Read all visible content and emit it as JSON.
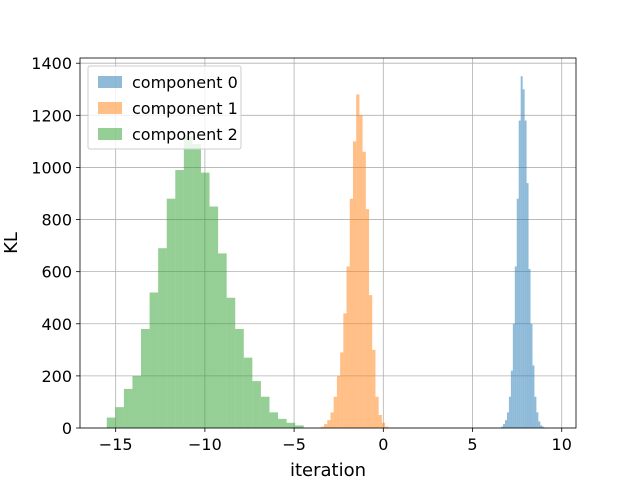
{
  "chart_data": {
    "type": "bar",
    "title": "",
    "xlabel": "iteration",
    "ylabel": "KL",
    "xlim": [
      -17,
      10.8
    ],
    "ylim": [
      0,
      1420
    ],
    "xticks": [
      -15,
      -10,
      -5,
      0,
      5,
      10
    ],
    "xtick_labels": [
      "−15",
      "−10",
      "−5",
      "0",
      "5",
      "10"
    ],
    "yticks": [
      0,
      200,
      400,
      600,
      800,
      1000,
      1200,
      1400
    ],
    "ytick_labels": [
      "0",
      "200",
      "400",
      "600",
      "800",
      "1000",
      "1200",
      "1400"
    ],
    "grid": true,
    "legend_position": "top-left",
    "series": [
      {
        "name": "component 0",
        "color": "#1f77b4",
        "opacity": 0.5,
        "bin_start": 6.6,
        "bin_width": 0.11,
        "counts": [
          5,
          15,
          30,
          60,
          120,
          220,
          400,
          620,
          880,
          1180,
          1350,
          1300,
          1180,
          940,
          610,
          400,
          240,
          120,
          60,
          25,
          10,
          5
        ]
      },
      {
        "name": "component 1",
        "color": "#ff7f0e",
        "opacity": 0.5,
        "bin_start": -3.5,
        "bin_width": 0.18,
        "counts": [
          5,
          15,
          30,
          60,
          120,
          200,
          290,
          440,
          620,
          880,
          1100,
          1280,
          1200,
          1060,
          840,
          510,
          300,
          120,
          50,
          20,
          5
        ]
      },
      {
        "name": "component 2",
        "color": "#2ca02c",
        "opacity": 0.5,
        "bin_start": -15.5,
        "bin_width": 0.48,
        "counts": [
          40,
          80,
          150,
          200,
          380,
          520,
          690,
          880,
          990,
          1120,
          1090,
          980,
          850,
          670,
          500,
          380,
          270,
          180,
          120,
          60,
          35,
          20,
          10
        ]
      }
    ]
  }
}
